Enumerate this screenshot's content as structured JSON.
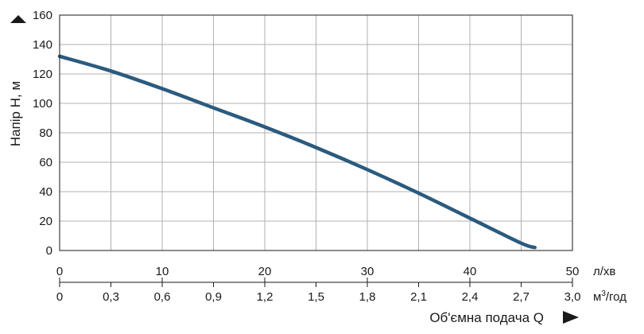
{
  "chart_data": {
    "type": "line",
    "ylabel": "Напір Н, м",
    "xlabel": "Об'ємна подача Q",
    "ylim": [
      0,
      160
    ],
    "yticks": [
      0,
      20,
      40,
      60,
      80,
      100,
      120,
      140,
      160
    ],
    "grid": true,
    "x_axis_primary": {
      "unit": "л/хв",
      "range": [
        0,
        50
      ],
      "ticks": [
        "0",
        "10",
        "20",
        "30",
        "40",
        "50"
      ]
    },
    "x_axis_secondary": {
      "unit_base": "м",
      "unit_sup": "3",
      "unit_rest": "/год",
      "range": [
        0,
        3.0
      ],
      "ticks": [
        "0",
        "0,3",
        "0,6",
        "0,9",
        "1,2",
        "1,5",
        "1,8",
        "2,1",
        "2,4",
        "2,7",
        "3,0"
      ]
    },
    "series": [
      {
        "color": "#2b5b7e",
        "x_m3h": [
          0,
          0.3,
          0.6,
          0.9,
          1.2,
          1.5,
          1.8,
          2.1,
          2.4,
          2.7,
          2.78
        ],
        "y": [
          132,
          122,
          110,
          97,
          84,
          70,
          55,
          39,
          22,
          5,
          2
        ]
      }
    ]
  }
}
